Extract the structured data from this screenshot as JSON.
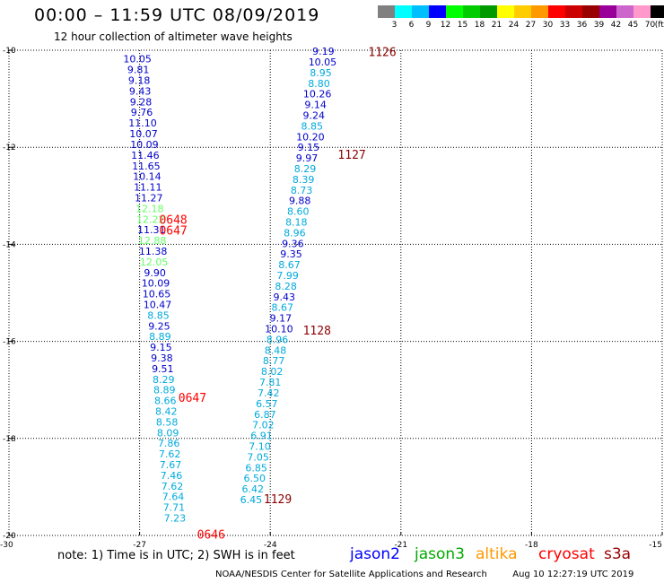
{
  "header": {
    "title": "00:00 – 11:59 UTC 08/09/2019",
    "subtitle": "12 hour collection of altimeter wave heights"
  },
  "color_scale": {
    "labels": [
      "3",
      "6",
      "9",
      "12",
      "15",
      "18",
      "21",
      "24",
      "27",
      "30",
      "33",
      "36",
      "39",
      "42",
      "45",
      "70",
      "(ft)"
    ],
    "colors": [
      "#808080",
      "#00ffff",
      "#00bfff",
      "#0000ff",
      "#00ff00",
      "#00cc00",
      "#009900",
      "#ffff00",
      "#ffcc00",
      "#ff9900",
      "#ff0000",
      "#cc0000",
      "#990000",
      "#990099",
      "#cc66cc",
      "#ff99cc",
      "#000000"
    ]
  },
  "map": {
    "lat_ticks": [
      {
        "lat": -10,
        "label": "-10"
      },
      {
        "lat": -12,
        "label": "-12"
      },
      {
        "lat": -14,
        "label": "-14"
      },
      {
        "lat": -16,
        "label": "-16"
      },
      {
        "lat": -18,
        "label": "-18"
      },
      {
        "lat": -20,
        "label": "-20"
      }
    ],
    "lon_ticks": [
      {
        "lon": -30,
        "label": "-30"
      },
      {
        "lon": -27,
        "label": "-27"
      },
      {
        "lon": -24,
        "label": "-24"
      },
      {
        "lon": -21,
        "label": "-21"
      },
      {
        "lon": -18,
        "label": "-18"
      },
      {
        "lon": -15,
        "label": "-15"
      }
    ],
    "track_left": [
      {
        "lon": -27.05,
        "lat": -10.18,
        "v": "10.05",
        "c": "#0000cc"
      },
      {
        "lon": -27.03,
        "lat": -10.4,
        "v": "9.81",
        "c": "#0000cc"
      },
      {
        "lon": -27.01,
        "lat": -10.62,
        "v": "9.18",
        "c": "#0000cc"
      },
      {
        "lon": -26.99,
        "lat": -10.84,
        "v": "9.43",
        "c": "#0000cc"
      },
      {
        "lon": -26.97,
        "lat": -11.06,
        "v": "9.28",
        "c": "#0000cc"
      },
      {
        "lon": -26.95,
        "lat": -11.28,
        "v": "9.76",
        "c": "#0000cc"
      },
      {
        "lon": -26.93,
        "lat": -11.5,
        "v": "11.10",
        "c": "#0000cc"
      },
      {
        "lon": -26.91,
        "lat": -11.72,
        "v": "10.07",
        "c": "#0000cc"
      },
      {
        "lon": -26.89,
        "lat": -11.94,
        "v": "10.09",
        "c": "#0000cc"
      },
      {
        "lon": -26.87,
        "lat": -12.16,
        "v": "11.46",
        "c": "#0000cc"
      },
      {
        "lon": -26.85,
        "lat": -12.38,
        "v": "11.65",
        "c": "#0000cc"
      },
      {
        "lon": -26.83,
        "lat": -12.6,
        "v": "10.14",
        "c": "#0000cc"
      },
      {
        "lon": -26.81,
        "lat": -12.82,
        "v": "11.11",
        "c": "#0000cc"
      },
      {
        "lon": -26.79,
        "lat": -13.04,
        "v": "11.27",
        "c": "#0000cc"
      },
      {
        "lon": -26.77,
        "lat": -13.26,
        "v": "12.18",
        "c": "#66ff66"
      },
      {
        "lon": -26.75,
        "lat": -13.48,
        "v": "12.22",
        "c": "#66ff66"
      },
      {
        "lon": -26.73,
        "lat": -13.7,
        "v": "11.31",
        "c": "#0000cc"
      },
      {
        "lon": -26.71,
        "lat": -13.92,
        "v": "12.88",
        "c": "#66ff66"
      },
      {
        "lon": -26.69,
        "lat": -14.14,
        "v": "11.38",
        "c": "#0000cc"
      },
      {
        "lon": -26.67,
        "lat": -14.36,
        "v": "12.05",
        "c": "#66ff66"
      },
      {
        "lon": -26.65,
        "lat": -14.58,
        "v": "9.90",
        "c": "#0000cc"
      },
      {
        "lon": -26.63,
        "lat": -14.8,
        "v": "10.09",
        "c": "#0000cc"
      },
      {
        "lon": -26.61,
        "lat": -15.02,
        "v": "10.65",
        "c": "#0000cc"
      },
      {
        "lon": -26.59,
        "lat": -15.24,
        "v": "10.47",
        "c": "#0000cc"
      },
      {
        "lon": -26.57,
        "lat": -15.46,
        "v": "8.85",
        "c": "#00aadd"
      },
      {
        "lon": -26.55,
        "lat": -15.68,
        "v": "9.25",
        "c": "#0000cc"
      },
      {
        "lon": -26.53,
        "lat": -15.9,
        "v": "8.89",
        "c": "#00aadd"
      },
      {
        "lon": -26.51,
        "lat": -16.12,
        "v": "9.15",
        "c": "#0000cc"
      },
      {
        "lon": -26.49,
        "lat": -16.34,
        "v": "9.38",
        "c": "#0000cc"
      },
      {
        "lon": -26.47,
        "lat": -16.56,
        "v": "9.51",
        "c": "#0000cc"
      },
      {
        "lon": -26.45,
        "lat": -16.78,
        "v": "8.29",
        "c": "#00aadd"
      },
      {
        "lon": -26.43,
        "lat": -17.0,
        "v": "8.89",
        "c": "#00aadd"
      },
      {
        "lon": -26.41,
        "lat": -17.22,
        "v": "8.66",
        "c": "#00aadd"
      },
      {
        "lon": -26.39,
        "lat": -17.44,
        "v": "8.42",
        "c": "#00aadd"
      },
      {
        "lon": -26.37,
        "lat": -17.66,
        "v": "8.58",
        "c": "#00aadd"
      },
      {
        "lon": -26.35,
        "lat": -17.88,
        "v": "8.09",
        "c": "#00aadd"
      },
      {
        "lon": -26.33,
        "lat": -18.1,
        "v": "7.86",
        "c": "#00aadd"
      },
      {
        "lon": -26.31,
        "lat": -18.32,
        "v": "7.62",
        "c": "#00aadd"
      },
      {
        "lon": -26.29,
        "lat": -18.54,
        "v": "7.67",
        "c": "#00aadd"
      },
      {
        "lon": -26.27,
        "lat": -18.76,
        "v": "7.46",
        "c": "#00aadd"
      },
      {
        "lon": -26.25,
        "lat": -18.98,
        "v": "7.62",
        "c": "#00aadd"
      },
      {
        "lon": -26.23,
        "lat": -19.2,
        "v": "7.64",
        "c": "#00aadd"
      },
      {
        "lon": -26.21,
        "lat": -19.42,
        "v": "7.71",
        "c": "#00aadd"
      },
      {
        "lon": -26.19,
        "lat": -19.64,
        "v": "7.23",
        "c": "#00aadd"
      }
    ],
    "track_right": [
      {
        "lon": -22.78,
        "lat": -10.02,
        "v": "9.19",
        "c": "#0000cc"
      },
      {
        "lon": -22.8,
        "lat": -10.24,
        "v": "10.05",
        "c": "#0000cc"
      },
      {
        "lon": -22.84,
        "lat": -10.46,
        "v": "8.95",
        "c": "#00aadd"
      },
      {
        "lon": -22.88,
        "lat": -10.68,
        "v": "8.80",
        "c": "#00aadd"
      },
      {
        "lon": -22.92,
        "lat": -10.9,
        "v": "10.26",
        "c": "#0000cc"
      },
      {
        "lon": -22.96,
        "lat": -11.12,
        "v": "9.14",
        "c": "#0000cc"
      },
      {
        "lon": -23.0,
        "lat": -11.34,
        "v": "9.24",
        "c": "#0000cc"
      },
      {
        "lon": -23.04,
        "lat": -11.56,
        "v": "8.85",
        "c": "#00aadd"
      },
      {
        "lon": -23.08,
        "lat": -11.78,
        "v": "10.20",
        "c": "#0000cc"
      },
      {
        "lon": -23.12,
        "lat": -12.0,
        "v": "9.15",
        "c": "#0000cc"
      },
      {
        "lon": -23.16,
        "lat": -12.22,
        "v": "9.97",
        "c": "#0000cc"
      },
      {
        "lon": -23.2,
        "lat": -12.44,
        "v": "8.29",
        "c": "#00aadd"
      },
      {
        "lon": -23.24,
        "lat": -12.66,
        "v": "8.39",
        "c": "#00aadd"
      },
      {
        "lon": -23.28,
        "lat": -12.88,
        "v": "8.73",
        "c": "#00aadd"
      },
      {
        "lon": -23.32,
        "lat": -13.1,
        "v": "9.88",
        "c": "#0000cc"
      },
      {
        "lon": -23.36,
        "lat": -13.32,
        "v": "8.60",
        "c": "#00aadd"
      },
      {
        "lon": -23.4,
        "lat": -13.54,
        "v": "8.18",
        "c": "#00aadd"
      },
      {
        "lon": -23.44,
        "lat": -13.76,
        "v": "8.96",
        "c": "#00aadd"
      },
      {
        "lon": -23.48,
        "lat": -13.98,
        "v": "9.36",
        "c": "#0000cc"
      },
      {
        "lon": -23.52,
        "lat": -14.2,
        "v": "9.35",
        "c": "#0000cc"
      },
      {
        "lon": -23.56,
        "lat": -14.42,
        "v": "8.67",
        "c": "#00aadd"
      },
      {
        "lon": -23.6,
        "lat": -14.64,
        "v": "7.99",
        "c": "#00aadd"
      },
      {
        "lon": -23.64,
        "lat": -14.86,
        "v": "8.28",
        "c": "#00aadd"
      },
      {
        "lon": -23.68,
        "lat": -15.08,
        "v": "9.43",
        "c": "#0000cc"
      },
      {
        "lon": -23.72,
        "lat": -15.3,
        "v": "8.67",
        "c": "#00aadd"
      },
      {
        "lon": -23.76,
        "lat": -15.52,
        "v": "9.17",
        "c": "#0000cc"
      },
      {
        "lon": -23.8,
        "lat": -15.74,
        "v": "10.10",
        "c": "#0000cc"
      },
      {
        "lon": -23.84,
        "lat": -15.96,
        "v": "8.96",
        "c": "#00aadd"
      },
      {
        "lon": -23.88,
        "lat": -16.18,
        "v": "8.48",
        "c": "#00aadd"
      },
      {
        "lon": -23.92,
        "lat": -16.4,
        "v": "8.77",
        "c": "#00aadd"
      },
      {
        "lon": -23.96,
        "lat": -16.62,
        "v": "8.02",
        "c": "#00aadd"
      },
      {
        "lon": -24.0,
        "lat": -16.84,
        "v": "7.81",
        "c": "#00aadd"
      },
      {
        "lon": -24.04,
        "lat": -17.06,
        "v": "7.42",
        "c": "#00aadd"
      },
      {
        "lon": -24.08,
        "lat": -17.28,
        "v": "6.57",
        "c": "#00aadd"
      },
      {
        "lon": -24.12,
        "lat": -17.5,
        "v": "6.87",
        "c": "#00aadd"
      },
      {
        "lon": -24.16,
        "lat": -17.72,
        "v": "7.02",
        "c": "#00aadd"
      },
      {
        "lon": -24.2,
        "lat": -17.94,
        "v": "6.91",
        "c": "#00aadd"
      },
      {
        "lon": -24.24,
        "lat": -18.16,
        "v": "7.10",
        "c": "#00aadd"
      },
      {
        "lon": -24.28,
        "lat": -18.38,
        "v": "7.05",
        "c": "#00aadd"
      },
      {
        "lon": -24.32,
        "lat": -18.6,
        "v": "6.85",
        "c": "#00aadd"
      },
      {
        "lon": -24.36,
        "lat": -18.82,
        "v": "6.50",
        "c": "#00aadd"
      },
      {
        "lon": -24.4,
        "lat": -19.04,
        "v": "6.42",
        "c": "#00aadd"
      },
      {
        "lon": -24.44,
        "lat": -19.26,
        "v": "6.45",
        "c": "#00aadd"
      }
    ],
    "time_labels": [
      {
        "lon": -21.75,
        "lat": -10.03,
        "t": "1126",
        "c": "#8b0000"
      },
      {
        "lon": -22.45,
        "lat": -12.14,
        "t": "1127",
        "c": "#8b0000"
      },
      {
        "lon": -23.25,
        "lat": -15.77,
        "t": "1128",
        "c": "#8b0000"
      },
      {
        "lon": -24.15,
        "lat": -19.24,
        "t": "1129",
        "c": "#8b0000"
      },
      {
        "lon": -26.55,
        "lat": -13.48,
        "t": "0648",
        "c": "#ff0000"
      },
      {
        "lon": -26.55,
        "lat": -13.71,
        "t": "0647",
        "c": "#ff0000"
      },
      {
        "lon": -26.11,
        "lat": -17.15,
        "t": "0647",
        "c": "#ff0000"
      },
      {
        "lon": -25.68,
        "lat": -19.97,
        "t": "0646",
        "c": "#ff0000"
      }
    ]
  },
  "notes": {
    "text": "note:  1) Time is in UTC;  2) SWH is in feet",
    "legend": [
      {
        "label": "jason2",
        "color": "#0000ff"
      },
      {
        "label": "jason3",
        "color": "#00aa00"
      },
      {
        "label": "altika",
        "color": "#ff9900"
      },
      {
        "label": "cryosat",
        "color": "#ff0000"
      },
      {
        "label": "s3a",
        "color": "#990000"
      }
    ]
  },
  "footer": {
    "credit": "NOAA/NESDIS Center for Satellite Applications and Research",
    "timestamp": "Aug 10 12:27:19 UTC 2019"
  }
}
